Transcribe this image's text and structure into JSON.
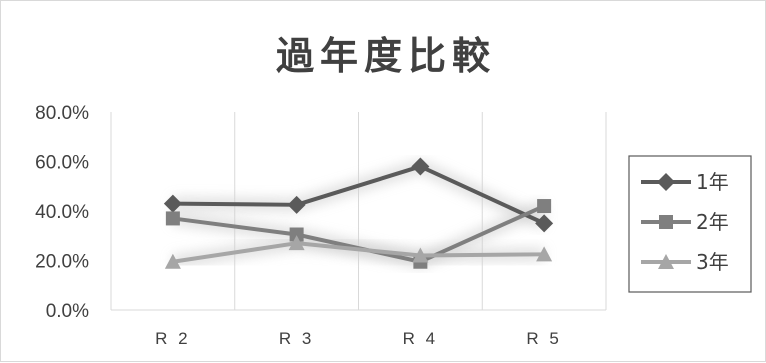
{
  "chart_data": {
    "type": "line",
    "title": "過年度比較",
    "xlabel": "",
    "ylabel": "",
    "categories": [
      "R2",
      "R3",
      "R4",
      "R5"
    ],
    "x_tick_labels": [
      "R 2",
      "R 3",
      "R 4",
      "R 5"
    ],
    "y_tick_labels": [
      "80.0%",
      "60.0%",
      "40.0%",
      "20.0%",
      "0.0%"
    ],
    "ylim": [
      0,
      0.8
    ],
    "y_ticks": [
      0.8,
      0.6,
      0.4,
      0.2,
      0.0
    ],
    "grid": "vertical",
    "legend_position": "right",
    "series": [
      {
        "name": "1年",
        "marker": "diamond",
        "color": "#5a5a5a",
        "values": [
          0.43,
          0.425,
          0.58,
          0.35
        ]
      },
      {
        "name": "2年",
        "marker": "square",
        "color": "#7f7f7f",
        "values": [
          0.37,
          0.305,
          0.195,
          0.42
        ]
      },
      {
        "name": "3年",
        "marker": "triangle",
        "color": "#a6a6a6",
        "values": [
          0.195,
          0.27,
          0.22,
          0.225
        ]
      }
    ]
  }
}
